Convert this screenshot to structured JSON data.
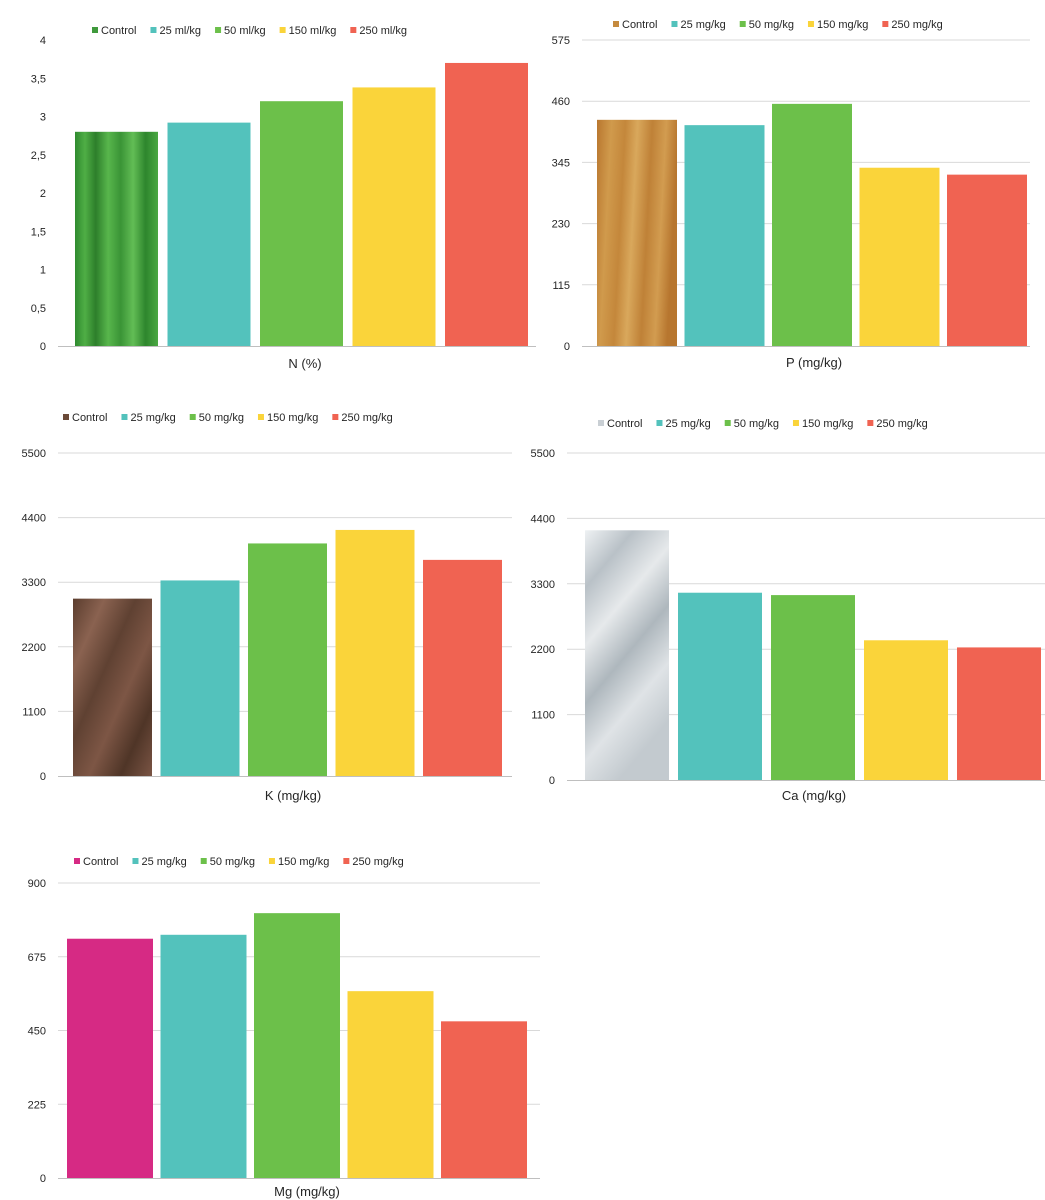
{
  "colors": {
    "teal": "#53c2bc",
    "green": "#6cc04a",
    "yellow": "#fad43a",
    "red": "#f06352",
    "gridline": "#d9d9d9",
    "axis": "#bfbfbf",
    "text": "#262626"
  },
  "chart_data": [
    {
      "type": "bar",
      "xlabel": "N (%)",
      "ylim": [
        0,
        4
      ],
      "yticks": [
        "0",
        "0,5",
        "1",
        "1,5",
        "2",
        "2,5",
        "3",
        "3,5",
        "4"
      ],
      "tick_values": [
        0,
        0.5,
        1,
        1.5,
        2,
        2.5,
        3,
        3.5,
        4
      ],
      "ytick_side": "left",
      "grid": false,
      "legend_position": "top",
      "categories": [
        "Control",
        "25 ml/kg",
        "50 ml/kg",
        "150 ml/kg",
        "250 ml/kg"
      ],
      "values": [
        2.8,
        2.92,
        3.2,
        3.38,
        3.7
      ],
      "series_colors": [
        "#3f9a3c",
        "#53c2bc",
        "#6cc04a",
        "#fad43a",
        "#f06352"
      ],
      "control_texture": "green grass"
    },
    {
      "type": "bar",
      "xlabel": "P (mg/kg)",
      "ylim": [
        0,
        575
      ],
      "yticks": [
        "0",
        "115",
        "230",
        "345",
        "460",
        "575"
      ],
      "tick_values": [
        0,
        115,
        230,
        345,
        460,
        575
      ],
      "ytick_side": "left",
      "grid": true,
      "legend_position": "top",
      "categories": [
        "Control",
        "25 mg/kg",
        "50 mg/kg",
        "150 mg/kg",
        "250 mg/kg"
      ],
      "values": [
        425,
        415,
        455,
        335,
        322
      ],
      "series_colors": [
        "#c58a3e",
        "#53c2bc",
        "#6cc04a",
        "#fad43a",
        "#f06352"
      ],
      "control_texture": "wood"
    },
    {
      "type": "bar",
      "xlabel": "K (mg/kg)",
      "ylim": [
        0,
        5500
      ],
      "yticks": [
        "0",
        "1100",
        "2200",
        "3300",
        "4400",
        "5500"
      ],
      "tick_values": [
        0,
        1100,
        2200,
        3300,
        4400,
        5500
      ],
      "ytick_side": "left",
      "grid": true,
      "legend_position": "top",
      "categories": [
        "Control",
        "25 mg/kg",
        "50 mg/kg",
        "150 mg/kg",
        "250 mg/kg"
      ],
      "values": [
        3020,
        3330,
        3960,
        4190,
        3680
      ],
      "series_colors": [
        "#6b4a38",
        "#53c2bc",
        "#6cc04a",
        "#fad43a",
        "#f06352"
      ],
      "control_texture": "soil"
    },
    {
      "type": "bar",
      "xlabel": "Ca  (mg/kg)",
      "ylim": [
        0,
        5500
      ],
      "yticks": [
        "0",
        "1100",
        "2200",
        "3300",
        "4400",
        "5500"
      ],
      "tick_values": [
        0,
        1100,
        2200,
        3300,
        4400,
        5500
      ],
      "ytick_side": "left",
      "grid": true,
      "legend_position": "top",
      "categories": [
        "Control",
        "25 mg/kg",
        "50 mg/kg",
        "150 mg/kg",
        "250 mg/kg"
      ],
      "values": [
        4200,
        3150,
        3110,
        2350,
        2230
      ],
      "series_colors": [
        "#c9cfd4",
        "#53c2bc",
        "#6cc04a",
        "#fad43a",
        "#f06352"
      ],
      "control_texture": "clouds"
    },
    {
      "type": "bar",
      "xlabel": "Mg (mg/kg)",
      "ylim": [
        0,
        900
      ],
      "yticks": [
        "0",
        "225",
        "450",
        "675",
        "900"
      ],
      "tick_values": [
        0,
        225,
        450,
        675,
        900
      ],
      "ytick_side": "left",
      "grid": true,
      "legend_position": "top",
      "categories": [
        "Control",
        "25 mg/kg",
        "50 mg/kg",
        "150 mg/kg",
        "250 mg/kg"
      ],
      "values": [
        730,
        742,
        808,
        570,
        478
      ],
      "series_colors": [
        "#d62a84",
        "#53c2bc",
        "#6cc04a",
        "#fad43a",
        "#f06352"
      ],
      "control_texture": "solid"
    }
  ]
}
